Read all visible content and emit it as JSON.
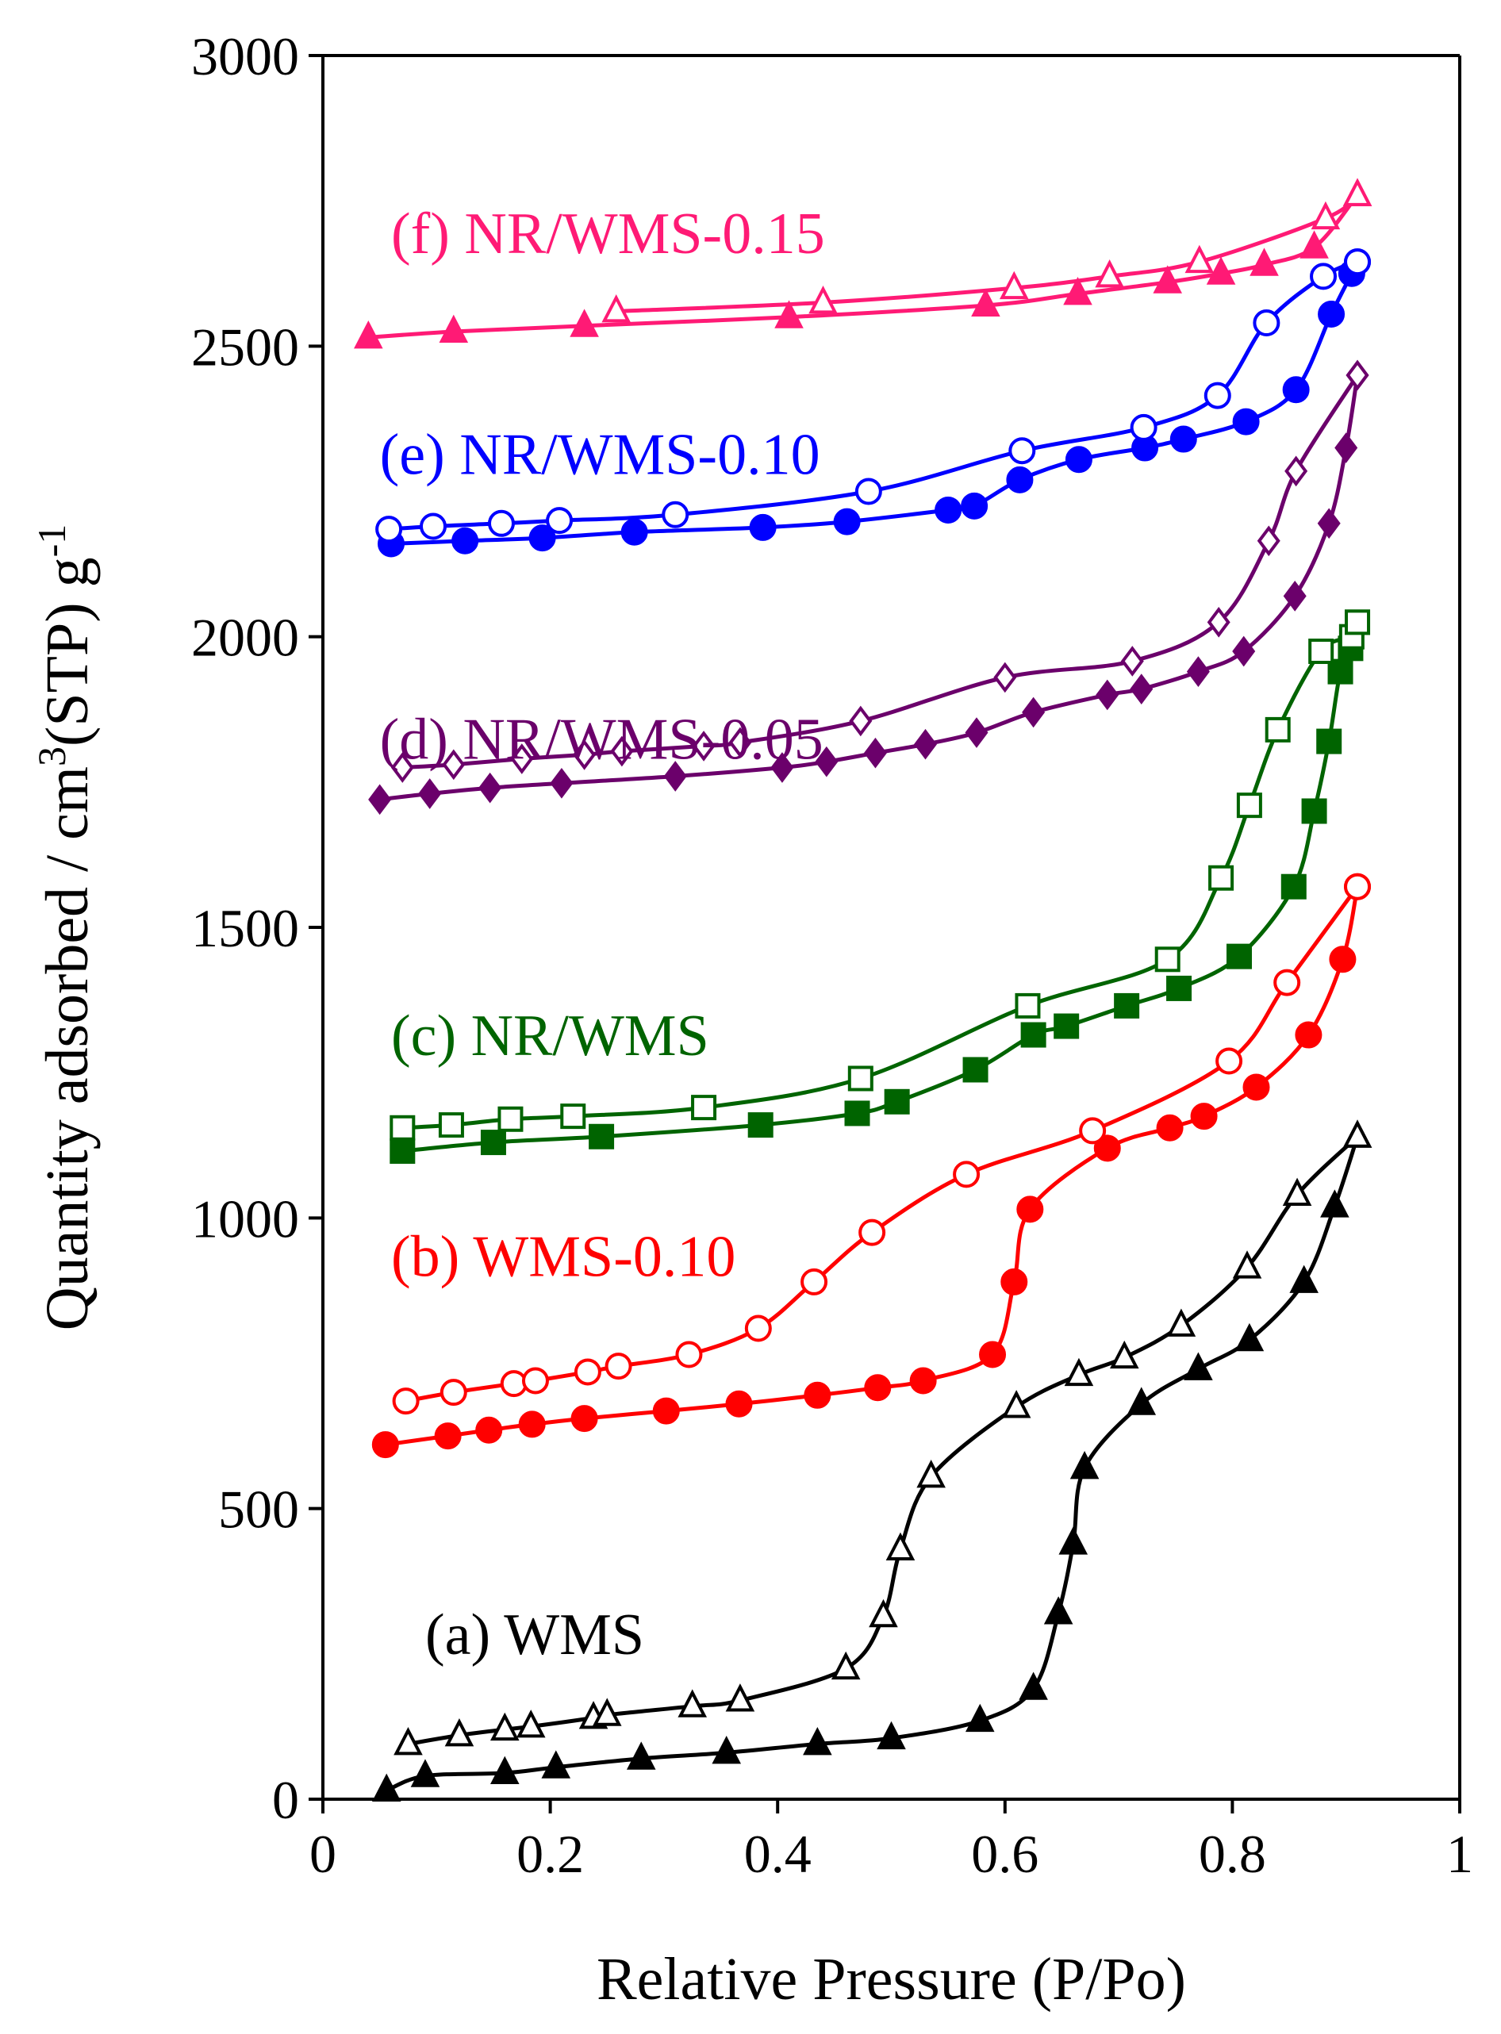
{
  "chart_data": {
    "type": "scatter",
    "xlabel": "Relative Pressure (P/Po)",
    "ylabel": {
      "base": "Quantity adsorbed / cm",
      "sup1": "3",
      "mid": "(STP) g",
      "sup2": "-1"
    },
    "xlim": [
      0,
      1
    ],
    "ylim": [
      0,
      3000
    ],
    "xticks": [
      0,
      0.2,
      0.4,
      0.6,
      0.8,
      1
    ],
    "xtick_labels": [
      "0",
      "0.2",
      "0.4",
      "0.6",
      "0.8",
      "1"
    ],
    "yticks": [
      0,
      500,
      1000,
      1500,
      2000,
      2500,
      3000
    ],
    "ytick_labels": [
      "0",
      "500",
      "1000",
      "1500",
      "2000",
      "2500",
      "3000"
    ],
    "grid": false,
    "legend": "inline labels next to each curve",
    "series": [
      {
        "name": "(a) WMS",
        "color": "#000000",
        "marker": "triangle",
        "label_x": 0.09,
        "label_y": 250,
        "adsorption": [
          [
            0.056,
            15
          ],
          [
            0.09,
            40
          ],
          [
            0.16,
            45
          ],
          [
            0.205,
            55
          ],
          [
            0.28,
            70
          ],
          [
            0.355,
            80
          ],
          [
            0.435,
            95
          ],
          [
            0.5,
            105
          ],
          [
            0.578,
            135
          ],
          [
            0.625,
            190
          ],
          [
            0.647,
            320
          ],
          [
            0.66,
            440
          ],
          [
            0.67,
            570
          ],
          [
            0.72,
            680
          ],
          [
            0.77,
            740
          ],
          [
            0.815,
            790
          ],
          [
            0.863,
            890
          ],
          [
            0.89,
            1020
          ],
          [
            0.91,
            1140
          ]
        ],
        "desorption": [
          [
            0.075,
            95
          ],
          [
            0.12,
            110
          ],
          [
            0.16,
            120
          ],
          [
            0.183,
            125
          ],
          [
            0.238,
            140
          ],
          [
            0.25,
            145
          ],
          [
            0.325,
            160
          ],
          [
            0.367,
            170
          ],
          [
            0.46,
            225
          ],
          [
            0.493,
            315
          ],
          [
            0.508,
            430
          ],
          [
            0.535,
            555
          ],
          [
            0.61,
            675
          ],
          [
            0.665,
            730
          ],
          [
            0.705,
            760
          ],
          [
            0.755,
            815
          ],
          [
            0.813,
            915
          ],
          [
            0.857,
            1040
          ],
          [
            0.91,
            1140
          ]
        ]
      },
      {
        "name": "(b) WMS-0.10",
        "color": "#ff0000",
        "marker": "circle",
        "label_x": 0.06,
        "label_y": 900,
        "adsorption": [
          [
            0.055,
            610
          ],
          [
            0.11,
            625
          ],
          [
            0.146,
            635
          ],
          [
            0.184,
            645
          ],
          [
            0.23,
            655
          ],
          [
            0.302,
            668
          ],
          [
            0.366,
            680
          ],
          [
            0.435,
            695
          ],
          [
            0.488,
            708
          ],
          [
            0.528,
            720
          ],
          [
            0.589,
            765
          ],
          [
            0.608,
            890
          ],
          [
            0.622,
            1015
          ],
          [
            0.69,
            1120
          ],
          [
            0.745,
            1155
          ],
          [
            0.775,
            1175
          ],
          [
            0.821,
            1225
          ],
          [
            0.867,
            1315
          ],
          [
            0.897,
            1445
          ],
          [
            0.91,
            1570
          ]
        ],
        "desorption": [
          [
            0.073,
            685
          ],
          [
            0.115,
            700
          ],
          [
            0.168,
            715
          ],
          [
            0.187,
            720
          ],
          [
            0.233,
            735
          ],
          [
            0.26,
            745
          ],
          [
            0.322,
            765
          ],
          [
            0.383,
            810
          ],
          [
            0.432,
            890
          ],
          [
            0.483,
            975
          ],
          [
            0.566,
            1075
          ],
          [
            0.677,
            1150
          ],
          [
            0.797,
            1270
          ],
          [
            0.848,
            1405
          ],
          [
            0.91,
            1570
          ]
        ]
      },
      {
        "name": "(c) NR/WMS",
        "color": "#006400",
        "marker": "square",
        "label_x": 0.06,
        "label_y": 1280,
        "adsorption": [
          [
            0.07,
            1115
          ],
          [
            0.15,
            1130
          ],
          [
            0.245,
            1140
          ],
          [
            0.385,
            1160
          ],
          [
            0.47,
            1180
          ],
          [
            0.505,
            1200
          ],
          [
            0.574,
            1255
          ],
          [
            0.625,
            1315
          ],
          [
            0.654,
            1330
          ],
          [
            0.707,
            1365
          ],
          [
            0.753,
            1395
          ],
          [
            0.806,
            1450
          ],
          [
            0.854,
            1570
          ],
          [
            0.872,
            1700
          ],
          [
            0.885,
            1820
          ],
          [
            0.895,
            1940
          ],
          [
            0.904,
            1980
          ],
          [
            0.91,
            2025
          ]
        ],
        "desorption": [
          [
            0.07,
            1155
          ],
          [
            0.113,
            1160
          ],
          [
            0.165,
            1170
          ],
          [
            0.22,
            1175
          ],
          [
            0.335,
            1190
          ],
          [
            0.473,
            1240
          ],
          [
            0.62,
            1365
          ],
          [
            0.743,
            1445
          ],
          [
            0.79,
            1585
          ],
          [
            0.815,
            1710
          ],
          [
            0.84,
            1840
          ],
          [
            0.878,
            1975
          ],
          [
            0.905,
            2000
          ],
          [
            0.91,
            2025
          ]
        ]
      },
      {
        "name": "(d) NR/WMS-0.05",
        "color": "#6b006b",
        "marker": "diamond",
        "label_x": 0.05,
        "label_y": 1790,
        "adsorption": [
          [
            0.05,
            1720
          ],
          [
            0.094,
            1730
          ],
          [
            0.147,
            1740
          ],
          [
            0.21,
            1748
          ],
          [
            0.31,
            1760
          ],
          [
            0.404,
            1775
          ],
          [
            0.443,
            1785
          ],
          [
            0.486,
            1800
          ],
          [
            0.53,
            1815
          ],
          [
            0.575,
            1835
          ],
          [
            0.625,
            1870
          ],
          [
            0.69,
            1900
          ],
          [
            0.72,
            1910
          ],
          [
            0.77,
            1940
          ],
          [
            0.81,
            1975
          ],
          [
            0.855,
            2070
          ],
          [
            0.885,
            2195
          ],
          [
            0.9,
            2325
          ],
          [
            0.91,
            2450
          ]
        ],
        "desorption": [
          [
            0.07,
            1775
          ],
          [
            0.115,
            1780
          ],
          [
            0.175,
            1790
          ],
          [
            0.23,
            1797
          ],
          [
            0.263,
            1803
          ],
          [
            0.335,
            1812
          ],
          [
            0.367,
            1818
          ],
          [
            0.473,
            1855
          ],
          [
            0.6,
            1930
          ],
          [
            0.712,
            1958
          ],
          [
            0.788,
            2025
          ],
          [
            0.832,
            2165
          ],
          [
            0.856,
            2285
          ],
          [
            0.91,
            2450
          ]
        ]
      },
      {
        "name": "(e) NR/WMS-0.10",
        "color": "#0000ff",
        "marker": "circle",
        "label_x": 0.05,
        "label_y": 2280,
        "adsorption": [
          [
            0.06,
            2160
          ],
          [
            0.125,
            2165
          ],
          [
            0.193,
            2170
          ],
          [
            0.274,
            2180
          ],
          [
            0.387,
            2188
          ],
          [
            0.461,
            2198
          ],
          [
            0.55,
            2218
          ],
          [
            0.573,
            2225
          ],
          [
            0.613,
            2270
          ],
          [
            0.665,
            2305
          ],
          [
            0.723,
            2325
          ],
          [
            0.757,
            2340
          ],
          [
            0.812,
            2370
          ],
          [
            0.856,
            2425
          ],
          [
            0.887,
            2555
          ],
          [
            0.905,
            2625
          ],
          [
            0.91,
            2645
          ]
        ],
        "desorption": [
          [
            0.058,
            2185
          ],
          [
            0.097,
            2190
          ],
          [
            0.157,
            2195
          ],
          [
            0.208,
            2200
          ],
          [
            0.31,
            2210
          ],
          [
            0.48,
            2250
          ],
          [
            0.615,
            2320
          ],
          [
            0.722,
            2360
          ],
          [
            0.787,
            2415
          ],
          [
            0.83,
            2540
          ],
          [
            0.88,
            2620
          ],
          [
            0.91,
            2645
          ]
        ]
      },
      {
        "name": "(f) NR/WMS-0.15",
        "color": "#ff1a75",
        "marker": "triangle",
        "label_x": 0.06,
        "label_y": 2660,
        "adsorption": [
          [
            0.04,
            2515
          ],
          [
            0.115,
            2525
          ],
          [
            0.23,
            2535
          ],
          [
            0.41,
            2550
          ],
          [
            0.583,
            2570
          ],
          [
            0.664,
            2590
          ],
          [
            0.743,
            2610
          ],
          [
            0.79,
            2625
          ],
          [
            0.828,
            2640
          ],
          [
            0.872,
            2670
          ],
          [
            0.91,
            2760
          ]
        ],
        "desorption": [
          [
            0.258,
            2560
          ],
          [
            0.44,
            2575
          ],
          [
            0.608,
            2600
          ],
          [
            0.692,
            2620
          ],
          [
            0.771,
            2645
          ],
          [
            0.882,
            2720
          ],
          [
            0.91,
            2760
          ]
        ]
      }
    ]
  }
}
